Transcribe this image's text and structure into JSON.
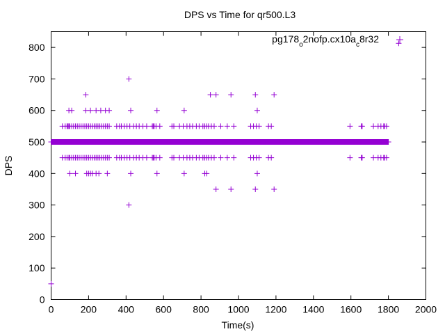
{
  "chart_data": {
    "type": "scatter",
    "title": "DPS vs Time for qr500.L3",
    "xlabel": "Time(s)",
    "ylabel": "DPS",
    "xlim": [
      0,
      2000
    ],
    "ylim": [
      0,
      850
    ],
    "xticks": [
      0,
      200,
      400,
      600,
      800,
      1000,
      1200,
      1400,
      1600,
      1800,
      2000
    ],
    "yticks": [
      0,
      100,
      200,
      300,
      400,
      500,
      600,
      700,
      800
    ],
    "grid": false,
    "legend_position": "top-right",
    "marker": "plus",
    "series": [
      {
        "name_parts": [
          "pg178",
          "o",
          "2nofp.cx10a",
          "c",
          "8r32"
        ],
        "color": "#9400d3",
        "x_range_dense_500": [
          0,
          1800
        ],
        "points": [
          [
            0,
            50
          ],
          [
            1855,
            813
          ],
          [
            415,
            700
          ],
          [
            415,
            300
          ],
          [
            185,
            650
          ],
          [
            850,
            650
          ],
          [
            880,
            650
          ],
          [
            960,
            650
          ],
          [
            1090,
            650
          ],
          [
            1190,
            650
          ],
          [
            95,
            600
          ],
          [
            110,
            600
          ],
          [
            185,
            600
          ],
          [
            210,
            600
          ],
          [
            240,
            600
          ],
          [
            265,
            600
          ],
          [
            290,
            600
          ],
          [
            310,
            600
          ],
          [
            425,
            600
          ],
          [
            565,
            600
          ],
          [
            710,
            600
          ],
          [
            1100,
            600
          ],
          [
            60,
            550
          ],
          [
            75,
            550
          ],
          [
            85,
            550
          ],
          [
            90,
            550
          ],
          [
            95,
            550
          ],
          [
            100,
            550
          ],
          [
            110,
            550
          ],
          [
            120,
            550
          ],
          [
            130,
            550
          ],
          [
            140,
            550
          ],
          [
            150,
            550
          ],
          [
            160,
            550
          ],
          [
            170,
            550
          ],
          [
            180,
            550
          ],
          [
            190,
            550
          ],
          [
            200,
            550
          ],
          [
            210,
            550
          ],
          [
            220,
            550
          ],
          [
            230,
            550
          ],
          [
            240,
            550
          ],
          [
            250,
            550
          ],
          [
            260,
            550
          ],
          [
            270,
            550
          ],
          [
            280,
            550
          ],
          [
            290,
            550
          ],
          [
            300,
            550
          ],
          [
            310,
            550
          ],
          [
            350,
            550
          ],
          [
            365,
            550
          ],
          [
            375,
            550
          ],
          [
            390,
            550
          ],
          [
            405,
            550
          ],
          [
            420,
            550
          ],
          [
            440,
            550
          ],
          [
            455,
            550
          ],
          [
            470,
            550
          ],
          [
            490,
            550
          ],
          [
            510,
            550
          ],
          [
            540,
            550
          ],
          [
            545,
            550
          ],
          [
            550,
            550
          ],
          [
            560,
            550
          ],
          [
            580,
            550
          ],
          [
            645,
            550
          ],
          [
            655,
            550
          ],
          [
            685,
            550
          ],
          [
            705,
            550
          ],
          [
            725,
            550
          ],
          [
            740,
            550
          ],
          [
            755,
            550
          ],
          [
            775,
            550
          ],
          [
            790,
            550
          ],
          [
            810,
            550
          ],
          [
            820,
            550
          ],
          [
            830,
            550
          ],
          [
            840,
            550
          ],
          [
            855,
            550
          ],
          [
            870,
            550
          ],
          [
            905,
            550
          ],
          [
            940,
            550
          ],
          [
            975,
            550
          ],
          [
            1065,
            550
          ],
          [
            1080,
            550
          ],
          [
            1095,
            550
          ],
          [
            1110,
            550
          ],
          [
            1160,
            550
          ],
          [
            1175,
            550
          ],
          [
            1595,
            550
          ],
          [
            1655,
            550
          ],
          [
            1660,
            550
          ],
          [
            1720,
            550
          ],
          [
            1745,
            550
          ],
          [
            1760,
            550
          ],
          [
            1775,
            550
          ],
          [
            1780,
            550
          ],
          [
            1790,
            550
          ],
          [
            60,
            450
          ],
          [
            75,
            450
          ],
          [
            85,
            450
          ],
          [
            95,
            450
          ],
          [
            100,
            450
          ],
          [
            110,
            450
          ],
          [
            120,
            450
          ],
          [
            130,
            450
          ],
          [
            140,
            450
          ],
          [
            150,
            450
          ],
          [
            160,
            450
          ],
          [
            170,
            450
          ],
          [
            180,
            450
          ],
          [
            190,
            450
          ],
          [
            200,
            450
          ],
          [
            210,
            450
          ],
          [
            220,
            450
          ],
          [
            230,
            450
          ],
          [
            240,
            450
          ],
          [
            250,
            450
          ],
          [
            260,
            450
          ],
          [
            270,
            450
          ],
          [
            280,
            450
          ],
          [
            290,
            450
          ],
          [
            300,
            450
          ],
          [
            310,
            450
          ],
          [
            350,
            450
          ],
          [
            365,
            450
          ],
          [
            375,
            450
          ],
          [
            390,
            450
          ],
          [
            405,
            450
          ],
          [
            420,
            450
          ],
          [
            440,
            450
          ],
          [
            455,
            450
          ],
          [
            470,
            450
          ],
          [
            490,
            450
          ],
          [
            510,
            450
          ],
          [
            540,
            450
          ],
          [
            545,
            450
          ],
          [
            550,
            450
          ],
          [
            560,
            450
          ],
          [
            580,
            450
          ],
          [
            645,
            450
          ],
          [
            655,
            450
          ],
          [
            685,
            450
          ],
          [
            705,
            450
          ],
          [
            725,
            450
          ],
          [
            740,
            450
          ],
          [
            755,
            450
          ],
          [
            775,
            450
          ],
          [
            790,
            450
          ],
          [
            810,
            450
          ],
          [
            820,
            450
          ],
          [
            830,
            450
          ],
          [
            840,
            450
          ],
          [
            855,
            450
          ],
          [
            870,
            450
          ],
          [
            905,
            450
          ],
          [
            940,
            450
          ],
          [
            975,
            450
          ],
          [
            1065,
            450
          ],
          [
            1080,
            450
          ],
          [
            1095,
            450
          ],
          [
            1110,
            450
          ],
          [
            1160,
            450
          ],
          [
            1175,
            450
          ],
          [
            1595,
            450
          ],
          [
            1655,
            450
          ],
          [
            1660,
            450
          ],
          [
            1720,
            450
          ],
          [
            1745,
            450
          ],
          [
            1760,
            450
          ],
          [
            1775,
            450
          ],
          [
            1780,
            450
          ],
          [
            1790,
            450
          ],
          [
            100,
            400
          ],
          [
            130,
            400
          ],
          [
            190,
            400
          ],
          [
            200,
            400
          ],
          [
            210,
            400
          ],
          [
            220,
            400
          ],
          [
            240,
            400
          ],
          [
            255,
            400
          ],
          [
            300,
            400
          ],
          [
            425,
            400
          ],
          [
            565,
            400
          ],
          [
            710,
            400
          ],
          [
            820,
            400
          ],
          [
            830,
            400
          ],
          [
            1100,
            400
          ],
          [
            880,
            350
          ],
          [
            960,
            350
          ],
          [
            1090,
            350
          ],
          [
            1190,
            350
          ]
        ]
      }
    ]
  }
}
